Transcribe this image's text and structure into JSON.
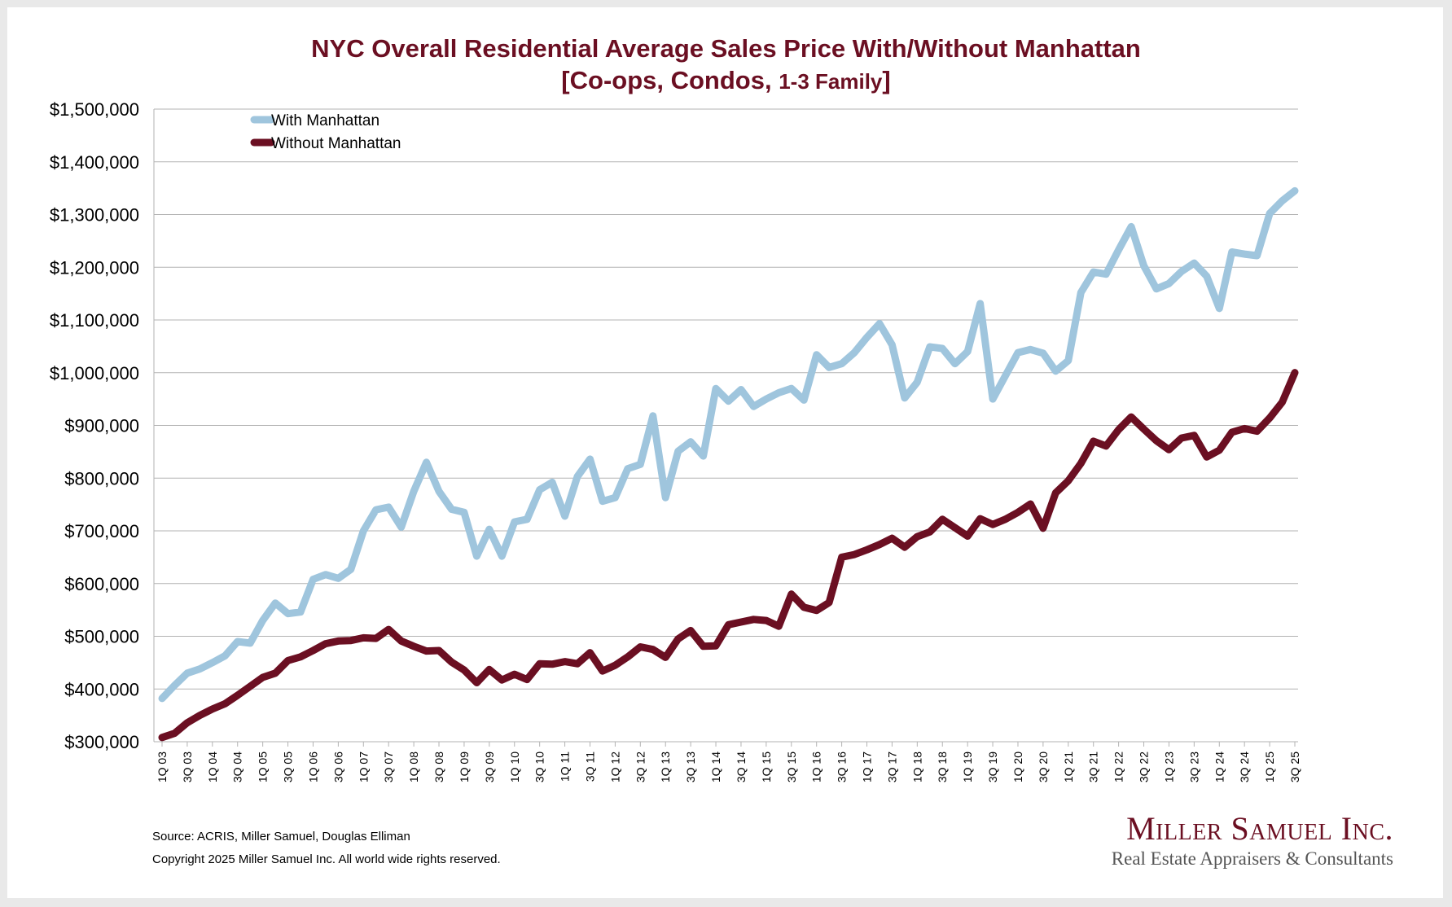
{
  "chart_data": {
    "type": "line",
    "title": "NYC Overall Residential Average Sales Price With/Without Manhattan",
    "subtitle_main": "[Co-ops, Condos, ",
    "subtitle_small": "1-3 Family",
    "subtitle_end": "]",
    "ylim": [
      300000,
      1500000
    ],
    "y_ticks": [
      300000,
      400000,
      500000,
      600000,
      700000,
      800000,
      900000,
      1000000,
      1100000,
      1200000,
      1300000,
      1400000,
      1500000
    ],
    "y_tick_labels": [
      "$300,000",
      "$400,000",
      "$500,000",
      "$600,000",
      "$700,000",
      "$800,000",
      "$900,000",
      "$1,000,000",
      "$1,100,000",
      "$1,200,000",
      "$1,300,000",
      "$1,400,000",
      "$1,500,000"
    ],
    "x_tick_labels": [
      "1Q 03",
      "3Q 03",
      "1Q 04",
      "3Q 04",
      "1Q 05",
      "3Q 05",
      "1Q 06",
      "3Q 06",
      "1Q 07",
      "3Q 07",
      "1Q 08",
      "3Q 08",
      "1Q 09",
      "3Q 09",
      "1Q 10",
      "3Q 10",
      "1Q 11",
      "3Q 11",
      "1Q 12",
      "3Q 12",
      "1Q 13",
      "3Q 13",
      "1Q 14",
      "3Q 14",
      "1Q 15",
      "3Q 15",
      "1Q 16",
      "3Q 16",
      "1Q 17",
      "3Q 17",
      "1Q 18",
      "3Q 18",
      "1Q 19",
      "3Q 19",
      "1Q 20",
      "3Q 20",
      "1Q 21",
      "3Q 21",
      "1Q 22",
      "3Q 22",
      "1Q 23",
      "3Q 23",
      "1Q 24",
      "3Q 24",
      "1Q 25",
      "3Q 25"
    ],
    "grid": true,
    "legend_position": "top-left",
    "series": [
      {
        "name": "With Manhattan",
        "color": "#9fc5dd",
        "values": [
          382000,
          407000,
          430000,
          438000,
          450000,
          463000,
          490000,
          487000,
          530000,
          563000,
          543000,
          546000,
          608000,
          617000,
          610000,
          627000,
          700000,
          740000,
          745000,
          707000,
          775000,
          830000,
          775000,
          741000,
          735000,
          652000,
          703000,
          652000,
          717000,
          722000,
          778000,
          792000,
          728000,
          803000,
          836000,
          756000,
          763000,
          818000,
          826000,
          918000,
          763000,
          851000,
          869000,
          842000,
          970000,
          946000,
          968000,
          936000,
          950000,
          962000,
          970000,
          948000,
          1034000,
          1010000,
          1017000,
          1038000,
          1067000,
          1093000,
          1053000,
          952000,
          982000,
          1049000,
          1046000,
          1017000,
          1040000,
          1131000,
          950000,
          994000,
          1038000,
          1044000,
          1037000,
          1003000,
          1023000,
          1152000,
          1191000,
          1187000,
          1233000,
          1277000,
          1203000,
          1159000,
          1169000,
          1192000,
          1208000,
          1183000,
          1122000,
          1229000,
          1225000,
          1222000,
          1302000,
          1326000,
          1345000
        ]
      },
      {
        "name": "Without Manhattan",
        "color": "#6b0f22",
        "values": [
          308000,
          316000,
          336000,
          350000,
          362000,
          372000,
          388000,
          405000,
          422000,
          430000,
          454000,
          461000,
          473000,
          486000,
          491000,
          492000,
          497000,
          496000,
          513000,
          491000,
          481000,
          472000,
          473000,
          451000,
          436000,
          412000,
          437000,
          417000,
          428000,
          418000,
          448000,
          447000,
          452000,
          448000,
          469000,
          434000,
          445000,
          461000,
          480000,
          475000,
          460000,
          495000,
          511000,
          481000,
          482000,
          522000,
          527000,
          532000,
          530000,
          519000,
          580000,
          555000,
          549000,
          564000,
          650000,
          655000,
          664000,
          674000,
          686000,
          669000,
          689000,
          698000,
          722000,
          706000,
          690000,
          723000,
          712000,
          722000,
          735000,
          751000,
          705000,
          772000,
          795000,
          828000,
          870000,
          861000,
          892000,
          916000,
          893000,
          871000,
          854000,
          876000,
          881000,
          840000,
          853000,
          887000,
          894000,
          889000,
          914000,
          944000,
          1000000
        ]
      }
    ]
  },
  "footer": {
    "source": "Source: ACRIS, Miller Samuel, Douglas Elliman",
    "copyright": "Copyright 2025 Miller Samuel Inc.  All world wide rights reserved."
  },
  "logo": {
    "name": "Miller Samuel Inc.",
    "tagline": "Real Estate Appraisers & Consultants"
  }
}
